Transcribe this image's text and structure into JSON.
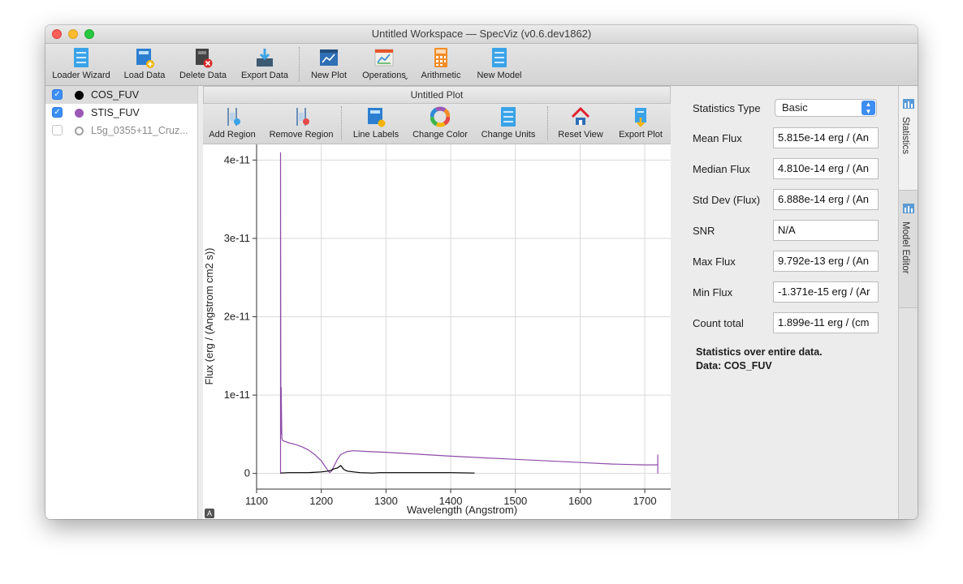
{
  "window": {
    "title": "Untitled Workspace — SpecViz (v0.6.dev1862)"
  },
  "toolbar": {
    "loader_wizard": "Loader Wizard",
    "load_data": "Load Data",
    "delete_data": "Delete Data",
    "export_data": "Export Data",
    "new_plot": "New Plot",
    "operations": "Operations",
    "arithmetic": "Arithmetic",
    "new_model": "New Model"
  },
  "datasets": [
    {
      "name": "COS_FUV",
      "checked": true,
      "color": "#000000"
    },
    {
      "name": "STIS_FUV",
      "checked": true,
      "color": "#9b59b6"
    },
    {
      "name": "L5g_0355+11_Cruz...",
      "checked": false,
      "color": "#999999"
    }
  ],
  "plot": {
    "title": "Untitled Plot",
    "tools": {
      "add_region": "Add Region",
      "remove_region": "Remove Region",
      "line_labels": "Line Labels",
      "change_color": "Change Color",
      "change_units": "Change Units",
      "reset_view": "Reset View",
      "export_plot": "Export Plot"
    },
    "auto_button": "A"
  },
  "chart_data": {
    "type": "line",
    "xlabel": "Wavelength (Angstrom)",
    "ylabel": "Flux (erg / (Angstrom cm2 s))",
    "xlim": [
      1100,
      1740
    ],
    "ylim": [
      -2e-12,
      4.2e-11
    ],
    "x_ticks": [
      1100,
      1200,
      1300,
      1400,
      1500,
      1600,
      1700
    ],
    "x_tick_labels": [
      "1100",
      "1200",
      "1300",
      "1400",
      "1500",
      "1600",
      "1700"
    ],
    "y_ticks": [
      0,
      1e-11,
      2e-11,
      3e-11,
      4e-11
    ],
    "y_tick_labels": [
      "0",
      "1e-11",
      "2e-11",
      "3e-11",
      "4e-11"
    ],
    "grid": true,
    "series": [
      {
        "name": "STIS_FUV",
        "color": "#8e4ba8",
        "x": [
          1137,
          1137,
          1137.5,
          1138,
          1138,
          1139,
          1140,
          1150,
          1160,
          1170,
          1180,
          1190,
          1200,
          1205,
          1210,
          1213,
          1216,
          1220,
          1225,
          1230,
          1240,
          1250,
          1270,
          1300,
          1350,
          1400,
          1450,
          1500,
          1550,
          1600,
          1650,
          1700,
          1720,
          1720,
          1720
        ],
        "y": [
          0,
          4.1e-11,
          5.2e-12,
          5e-12,
          1.1e-11,
          4.5e-12,
          4.2e-12,
          3.9e-12,
          3.7e-12,
          3.4e-12,
          3e-12,
          2.4e-12,
          1.6e-12,
          1e-12,
          4e-13,
          1e-13,
          3e-13,
          1e-12,
          1.8e-12,
          2.4e-12,
          2.8e-12,
          2.9e-12,
          2.8e-12,
          2.7e-12,
          2.45e-12,
          2.2e-12,
          2e-12,
          1.8e-12,
          1.6e-12,
          1.4e-12,
          1.2e-12,
          1.1e-12,
          1.1e-12,
          2.4e-12,
          0
        ]
      },
      {
        "name": "COS_FUV",
        "color": "#000000",
        "x": [
          1137,
          1150,
          1180,
          1200,
          1210,
          1215,
          1220,
          1225,
          1230,
          1235,
          1240,
          1250,
          1260,
          1280,
          1290,
          1300,
          1350,
          1400,
          1437
        ],
        "y": [
          5e-14,
          1e-13,
          1e-13,
          2e-13,
          3e-13,
          4e-13,
          6e-13,
          7e-13,
          1e-12,
          5e-13,
          3e-13,
          2e-13,
          1e-13,
          5e-14,
          1e-13,
          1e-13,
          1e-13,
          1e-13,
          5e-14
        ]
      }
    ]
  },
  "statistics": {
    "type_label": "Statistics Type",
    "type_value": "Basic",
    "rows": [
      {
        "label": "Mean Flux",
        "value": "5.815e-14 erg / (An"
      },
      {
        "label": "Median Flux",
        "value": "4.810e-14 erg / (An"
      },
      {
        "label": "Std Dev (Flux)",
        "value": "6.888e-14 erg / (An"
      },
      {
        "label": "SNR",
        "value": "N/A"
      },
      {
        "label": "Max Flux",
        "value": "9.792e-13 erg / (An"
      },
      {
        "label": "Min Flux",
        "value": "-1.371e-15 erg / (Ar"
      },
      {
        "label": "Count total",
        "value": "1.899e-11 erg / (cm"
      }
    ],
    "note_line1": "Statistics over entire data.",
    "note_line2": "Data: COS_FUV"
  },
  "side_tabs": {
    "statistics": "Statistics",
    "model_editor": "Model Editor"
  }
}
